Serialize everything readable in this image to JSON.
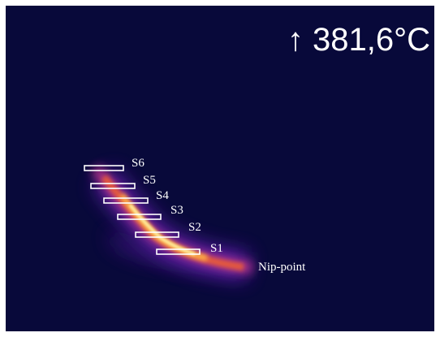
{
  "readout": "↑ 381,6°C",
  "sensors": [
    {
      "label": "S1"
    },
    {
      "label": "S2"
    },
    {
      "label": "S3"
    },
    {
      "label": "S4"
    },
    {
      "label": "S5"
    },
    {
      "label": "S6"
    }
  ],
  "annotation": "Nip-point"
}
